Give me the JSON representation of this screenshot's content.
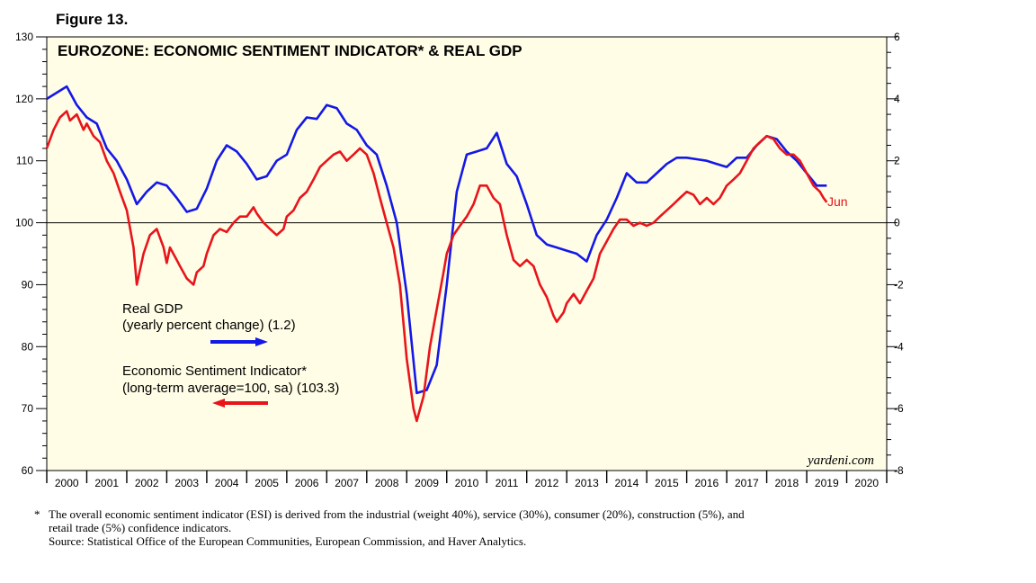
{
  "figure_label": "Figure 13.",
  "chart_data": {
    "type": "line",
    "title": "EUROZONE: ECONOMIC SENTIMENT INDICATOR* & REAL GDP",
    "x_range": [
      2000.0,
      2021.0
    ],
    "left_axis": {
      "range": [
        60,
        130
      ],
      "ticks": [
        60,
        70,
        80,
        90,
        100,
        110,
        120,
        130
      ]
    },
    "right_axis": {
      "range": [
        -8,
        6
      ],
      "ticks": [
        "-8",
        "-6",
        "-4",
        "-2",
        "0",
        "2",
        "4",
        "6"
      ]
    },
    "reference_line_y": 100,
    "year_labels": [
      "2000",
      "2001",
      "2002",
      "2003",
      "2004",
      "2005",
      "2006",
      "2007",
      "2008",
      "2009",
      "2010",
      "2011",
      "2012",
      "2013",
      "2014",
      "2015",
      "2016",
      "2017",
      "2018",
      "2019",
      "2020"
    ],
    "series": [
      {
        "name": "Real GDP",
        "color": "#1418e6",
        "axis": "right",
        "legend_line1": "Real GDP",
        "legend_line2": "(yearly percent change) (1.2)",
        "points": [
          [
            2000.0,
            4.0
          ],
          [
            2000.25,
            4.2
          ],
          [
            2000.5,
            4.4
          ],
          [
            2000.75,
            3.8
          ],
          [
            2001.0,
            3.4
          ],
          [
            2001.25,
            3.2
          ],
          [
            2001.5,
            2.4
          ],
          [
            2001.75,
            2.0
          ],
          [
            2002.0,
            1.4
          ],
          [
            2002.25,
            0.6
          ],
          [
            2002.5,
            1.0
          ],
          [
            2002.75,
            1.3
          ],
          [
            2003.0,
            1.2
          ],
          [
            2003.25,
            0.8
          ],
          [
            2003.5,
            0.35
          ],
          [
            2003.75,
            0.45
          ],
          [
            2004.0,
            1.1
          ],
          [
            2004.25,
            2.0
          ],
          [
            2004.5,
            2.5
          ],
          [
            2004.75,
            2.3
          ],
          [
            2005.0,
            1.9
          ],
          [
            2005.25,
            1.4
          ],
          [
            2005.5,
            1.5
          ],
          [
            2005.75,
            2.0
          ],
          [
            2006.0,
            2.2
          ],
          [
            2006.25,
            3.0
          ],
          [
            2006.5,
            3.4
          ],
          [
            2006.75,
            3.35
          ],
          [
            2007.0,
            3.8
          ],
          [
            2007.25,
            3.7
          ],
          [
            2007.5,
            3.2
          ],
          [
            2007.75,
            3.0
          ],
          [
            2008.0,
            2.5
          ],
          [
            2008.25,
            2.2
          ],
          [
            2008.5,
            1.2
          ],
          [
            2008.75,
            0.0
          ],
          [
            2009.0,
            -2.3
          ],
          [
            2009.25,
            -5.5
          ],
          [
            2009.5,
            -5.4
          ],
          [
            2009.75,
            -4.6
          ],
          [
            2010.0,
            -2.0
          ],
          [
            2010.25,
            1.0
          ],
          [
            2010.5,
            2.2
          ],
          [
            2010.75,
            2.3
          ],
          [
            2011.0,
            2.4
          ],
          [
            2011.25,
            2.9
          ],
          [
            2011.5,
            1.9
          ],
          [
            2011.75,
            1.5
          ],
          [
            2012.0,
            0.6
          ],
          [
            2012.25,
            -0.4
          ],
          [
            2012.5,
            -0.7
          ],
          [
            2012.75,
            -0.8
          ],
          [
            2013.0,
            -0.9
          ],
          [
            2013.25,
            -1.0
          ],
          [
            2013.5,
            -1.25
          ],
          [
            2013.75,
            -0.4
          ],
          [
            2014.0,
            0.1
          ],
          [
            2014.25,
            0.8
          ],
          [
            2014.5,
            1.6
          ],
          [
            2014.75,
            1.3
          ],
          [
            2015.0,
            1.3
          ],
          [
            2015.25,
            1.6
          ],
          [
            2015.5,
            1.9
          ],
          [
            2015.75,
            2.1
          ],
          [
            2016.0,
            2.1
          ],
          [
            2016.25,
            2.05
          ],
          [
            2016.5,
            2.0
          ],
          [
            2016.75,
            1.9
          ],
          [
            2017.0,
            1.8
          ],
          [
            2017.25,
            2.1
          ],
          [
            2017.5,
            2.1
          ],
          [
            2017.75,
            2.5
          ],
          [
            2018.0,
            2.8
          ],
          [
            2018.25,
            2.7
          ],
          [
            2018.5,
            2.3
          ],
          [
            2018.75,
            2.0
          ],
          [
            2019.0,
            1.6
          ],
          [
            2019.25,
            1.2
          ],
          [
            2019.5,
            1.2
          ]
        ]
      },
      {
        "name": "Economic Sentiment Indicator",
        "color": "#e8141b",
        "axis": "left",
        "legend_line1": "Economic Sentiment Indicator*",
        "legend_line2": "(long-term average=100, sa) (103.3)",
        "end_label": "Jun",
        "points": [
          [
            2000.0,
            112
          ],
          [
            2000.17,
            115
          ],
          [
            2000.33,
            117
          ],
          [
            2000.5,
            118
          ],
          [
            2000.58,
            116.5
          ],
          [
            2000.75,
            117.5
          ],
          [
            2000.92,
            115
          ],
          [
            2001.0,
            116
          ],
          [
            2001.17,
            114
          ],
          [
            2001.33,
            113
          ],
          [
            2001.5,
            110
          ],
          [
            2001.67,
            108
          ],
          [
            2001.83,
            105
          ],
          [
            2002.0,
            102
          ],
          [
            2002.17,
            96
          ],
          [
            2002.25,
            90
          ],
          [
            2002.42,
            95
          ],
          [
            2002.58,
            98
          ],
          [
            2002.75,
            99
          ],
          [
            2002.92,
            96
          ],
          [
            2003.0,
            93.5
          ],
          [
            2003.08,
            96
          ],
          [
            2003.25,
            94
          ],
          [
            2003.33,
            93
          ],
          [
            2003.5,
            91
          ],
          [
            2003.67,
            90
          ],
          [
            2003.75,
            92
          ],
          [
            2003.92,
            93
          ],
          [
            2004.0,
            95
          ],
          [
            2004.17,
            98
          ],
          [
            2004.33,
            99
          ],
          [
            2004.5,
            98.5
          ],
          [
            2004.67,
            100
          ],
          [
            2004.83,
            101
          ],
          [
            2005.0,
            101
          ],
          [
            2005.17,
            102.5
          ],
          [
            2005.25,
            101.5
          ],
          [
            2005.42,
            100
          ],
          [
            2005.58,
            99
          ],
          [
            2005.75,
            98
          ],
          [
            2005.92,
            99
          ],
          [
            2006.0,
            101
          ],
          [
            2006.17,
            102
          ],
          [
            2006.33,
            104
          ],
          [
            2006.5,
            105
          ],
          [
            2006.67,
            107
          ],
          [
            2006.83,
            109
          ],
          [
            2007.0,
            110
          ],
          [
            2007.17,
            111
          ],
          [
            2007.33,
            111.5
          ],
          [
            2007.5,
            110
          ],
          [
            2007.67,
            111
          ],
          [
            2007.83,
            112
          ],
          [
            2008.0,
            111
          ],
          [
            2008.17,
            108
          ],
          [
            2008.33,
            104
          ],
          [
            2008.5,
            100
          ],
          [
            2008.67,
            96
          ],
          [
            2008.83,
            90
          ],
          [
            2009.0,
            78
          ],
          [
            2009.17,
            70
          ],
          [
            2009.25,
            68
          ],
          [
            2009.42,
            72
          ],
          [
            2009.58,
            80
          ],
          [
            2009.75,
            86
          ],
          [
            2009.92,
            92
          ],
          [
            2010.0,
            95
          ],
          [
            2010.17,
            98
          ],
          [
            2010.33,
            99.5
          ],
          [
            2010.5,
            101
          ],
          [
            2010.67,
            103
          ],
          [
            2010.83,
            106
          ],
          [
            2011.0,
            106
          ],
          [
            2011.17,
            104
          ],
          [
            2011.33,
            103
          ],
          [
            2011.5,
            98
          ],
          [
            2011.67,
            94
          ],
          [
            2011.83,
            93
          ],
          [
            2012.0,
            94
          ],
          [
            2012.17,
            93
          ],
          [
            2012.33,
            90
          ],
          [
            2012.5,
            88
          ],
          [
            2012.67,
            85
          ],
          [
            2012.75,
            84
          ],
          [
            2012.92,
            85.5
          ],
          [
            2013.0,
            87
          ],
          [
            2013.17,
            88.5
          ],
          [
            2013.33,
            87
          ],
          [
            2013.5,
            89
          ],
          [
            2013.67,
            91
          ],
          [
            2013.83,
            95
          ],
          [
            2014.0,
            97
          ],
          [
            2014.17,
            99
          ],
          [
            2014.33,
            100.5
          ],
          [
            2014.5,
            100.5
          ],
          [
            2014.67,
            99.5
          ],
          [
            2014.83,
            100
          ],
          [
            2015.0,
            99.5
          ],
          [
            2015.17,
            100
          ],
          [
            2015.33,
            101
          ],
          [
            2015.5,
            102
          ],
          [
            2015.67,
            103
          ],
          [
            2015.83,
            104
          ],
          [
            2016.0,
            105
          ],
          [
            2016.17,
            104.5
          ],
          [
            2016.33,
            103
          ],
          [
            2016.5,
            104
          ],
          [
            2016.67,
            103
          ],
          [
            2016.83,
            104
          ],
          [
            2017.0,
            106
          ],
          [
            2017.17,
            107
          ],
          [
            2017.33,
            108
          ],
          [
            2017.5,
            110
          ],
          [
            2017.67,
            112
          ],
          [
            2017.83,
            113
          ],
          [
            2018.0,
            114
          ],
          [
            2018.17,
            113.5
          ],
          [
            2018.33,
            112
          ],
          [
            2018.5,
            111
          ],
          [
            2018.67,
            111
          ],
          [
            2018.83,
            110
          ],
          [
            2019.0,
            108
          ],
          [
            2019.17,
            106
          ],
          [
            2019.33,
            105
          ],
          [
            2019.42,
            104
          ],
          [
            2019.5,
            103.3
          ]
        ]
      }
    ]
  },
  "brand": "yardeni.com",
  "footnote": {
    "marker": "*",
    "line1": "The overall economic sentiment indicator (ESI) is derived from the industrial (weight 40%), service (30%), consumer (20%), construction (5%), and",
    "line2": "retail trade (5%) confidence indicators.",
    "source": "Source: Statistical Office of the European Communities, European Commission, and Haver Analytics."
  }
}
